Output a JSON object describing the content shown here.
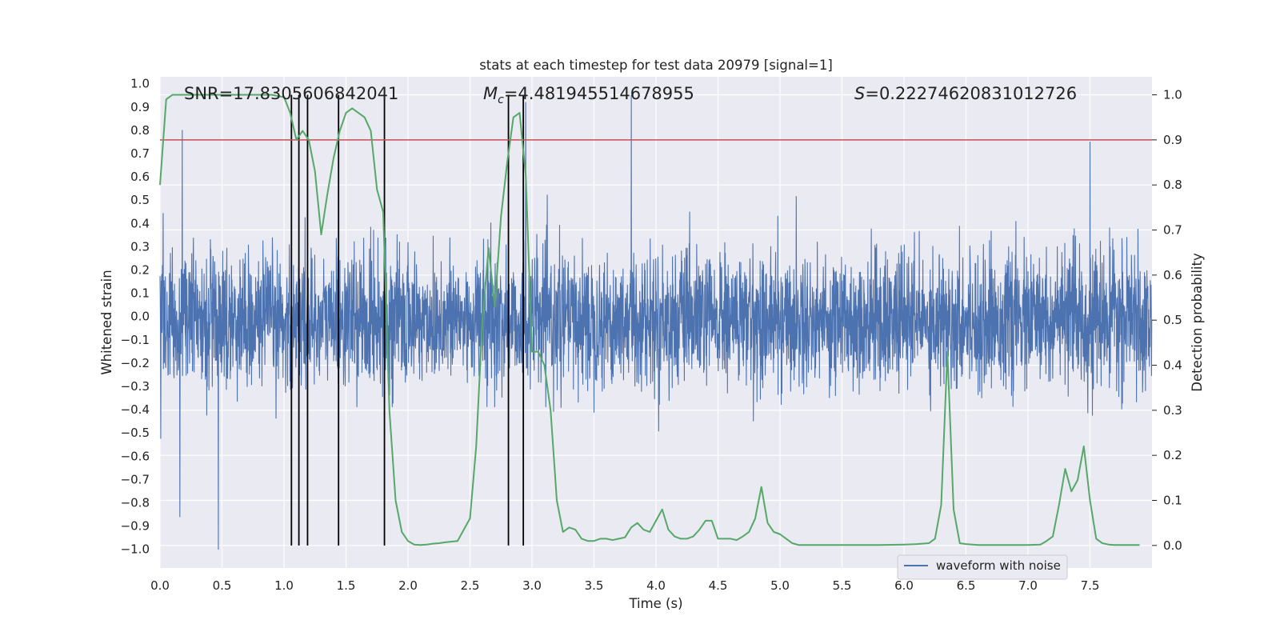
{
  "chart_data": {
    "type": "line",
    "title": "stats at each timestep for test data 20979 [signal=1]",
    "xlabel": "Time (s)",
    "ylabel_left": "Whitened strain",
    "ylabel_right": "Detection probability",
    "xlim": [
      0.0,
      8.0
    ],
    "ylim_left": [
      -1.08,
      1.03
    ],
    "ylim_right": [
      -0.05,
      1.04
    ],
    "x_ticks": [
      "0.0",
      "0.5",
      "1.0",
      "1.5",
      "2.0",
      "2.5",
      "3.0",
      "3.5",
      "4.0",
      "4.5",
      "5.0",
      "5.5",
      "6.0",
      "6.5",
      "7.0",
      "7.5"
    ],
    "x_tick_values": [
      0.0,
      0.5,
      1.0,
      1.5,
      2.0,
      2.5,
      3.0,
      3.5,
      4.0,
      4.5,
      5.0,
      5.5,
      6.0,
      6.5,
      7.0,
      7.5
    ],
    "left_ticks": [
      "1.0",
      "0.9",
      "0.8",
      "0.7",
      "0.6",
      "0.5",
      "0.4",
      "0.3",
      "0.2",
      "0.1",
      "0.0",
      "−0.1",
      "−0.2",
      "−0.3",
      "−0.4",
      "−0.5",
      "−0.6",
      "−0.7",
      "−0.8",
      "−0.9",
      "−1.0"
    ],
    "left_tick_values": [
      1.0,
      0.9,
      0.8,
      0.7,
      0.6,
      0.5,
      0.4,
      0.3,
      0.2,
      0.1,
      0.0,
      -0.1,
      -0.2,
      -0.3,
      -0.4,
      -0.5,
      -0.6,
      -0.7,
      -0.8,
      -0.9,
      -1.0
    ],
    "right_ticks": [
      "1.0",
      "0.9",
      "0.8",
      "0.7",
      "0.6",
      "0.5",
      "0.4",
      "0.3",
      "0.2",
      "0.1",
      "0.0"
    ],
    "right_tick_values": [
      1.0,
      0.9,
      0.8,
      0.7,
      0.6,
      0.5,
      0.4,
      0.3,
      0.2,
      0.1,
      0.0
    ],
    "grid": true,
    "legend": {
      "position": "lower-right",
      "entries": [
        "waveform with noise"
      ]
    },
    "annotations": {
      "snr": "SNR=17.8305606842041",
      "mc_symbol": "M",
      "mc_sub": "c",
      "mc_value": "=4.481945514678955",
      "s_symbol": "S",
      "s_value": "=0.22274620831012726"
    },
    "threshold": {
      "axis": "right",
      "value": 0.9,
      "color": "#c44e52"
    },
    "vertical_lines": {
      "color": "#000000",
      "x": [
        1.06,
        1.12,
        1.19,
        1.44,
        1.81,
        2.81,
        2.93
      ]
    },
    "waveform_envelope": {
      "name": "waveform with noise",
      "color": "#4c72b0",
      "samples": 4096,
      "dense_band": [
        -0.38,
        0.35
      ],
      "max_abs": 1.0,
      "notable_spikes": [
        {
          "t": 0.47,
          "v": -1.0
        },
        {
          "t": 3.8,
          "v": 0.95
        },
        {
          "t": 7.5,
          "v": 0.75
        },
        {
          "t": 0.16,
          "v": -0.86
        },
        {
          "t": 0.18,
          "v": 0.8
        },
        {
          "t": 2.95,
          "v": 0.92
        }
      ]
    },
    "detection_probability": {
      "color": "#55a868",
      "axis": "right",
      "x": [
        0.0,
        0.05,
        0.1,
        0.15,
        0.2,
        0.3,
        0.4,
        0.5,
        0.6,
        0.7,
        0.8,
        0.9,
        1.0,
        1.05,
        1.1,
        1.15,
        1.2,
        1.25,
        1.3,
        1.35,
        1.4,
        1.45,
        1.5,
        1.55,
        1.6,
        1.65,
        1.7,
        1.75,
        1.8,
        1.85,
        1.9,
        1.95,
        2.0,
        2.05,
        2.1,
        2.15,
        2.2,
        2.25,
        2.3,
        2.4,
        2.5,
        2.55,
        2.6,
        2.65,
        2.7,
        2.75,
        2.8,
        2.85,
        2.9,
        2.95,
        3.0,
        3.05,
        3.1,
        3.15,
        3.2,
        3.25,
        3.3,
        3.35,
        3.4,
        3.45,
        3.5,
        3.55,
        3.6,
        3.65,
        3.7,
        3.75,
        3.8,
        3.85,
        3.9,
        3.95,
        4.0,
        4.05,
        4.1,
        4.15,
        4.2,
        4.25,
        4.3,
        4.35,
        4.4,
        4.45,
        4.5,
        4.55,
        4.6,
        4.65,
        4.7,
        4.75,
        4.8,
        4.85,
        4.9,
        4.95,
        5.0,
        5.05,
        5.1,
        5.15,
        5.2,
        5.3,
        5.5,
        5.8,
        6.0,
        6.1,
        6.2,
        6.25,
        6.3,
        6.35,
        6.4,
        6.45,
        6.5,
        6.6,
        6.8,
        7.0,
        7.1,
        7.15,
        7.2,
        7.25,
        7.3,
        7.35,
        7.4,
        7.45,
        7.5,
        7.55,
        7.6,
        7.65,
        7.7,
        7.9
      ],
      "y": [
        0.8,
        0.99,
        1.0,
        1.0,
        1.0,
        1.0,
        1.0,
        1.0,
        1.0,
        1.0,
        1.0,
        1.0,
        0.995,
        0.96,
        0.9,
        0.92,
        0.9,
        0.83,
        0.69,
        0.78,
        0.86,
        0.92,
        0.96,
        0.97,
        0.96,
        0.95,
        0.92,
        0.79,
        0.74,
        0.3,
        0.1,
        0.03,
        0.01,
        0.002,
        0.001,
        0.002,
        0.004,
        0.005,
        0.007,
        0.01,
        0.06,
        0.22,
        0.5,
        0.66,
        0.53,
        0.73,
        0.85,
        0.95,
        0.96,
        0.82,
        0.43,
        0.43,
        0.4,
        0.3,
        0.1,
        0.03,
        0.04,
        0.035,
        0.015,
        0.01,
        0.01,
        0.015,
        0.015,
        0.012,
        0.015,
        0.018,
        0.04,
        0.05,
        0.035,
        0.03,
        0.055,
        0.08,
        0.035,
        0.02,
        0.015,
        0.015,
        0.02,
        0.035,
        0.055,
        0.055,
        0.015,
        0.015,
        0.015,
        0.012,
        0.02,
        0.03,
        0.06,
        0.13,
        0.05,
        0.03,
        0.025,
        0.015,
        0.005,
        0.001,
        0.001,
        0.001,
        0.001,
        0.001,
        0.002,
        0.003,
        0.005,
        0.015,
        0.09,
        0.43,
        0.08,
        0.005,
        0.003,
        0.001,
        0.001,
        0.001,
        0.002,
        0.01,
        0.02,
        0.09,
        0.17,
        0.12,
        0.145,
        0.22,
        0.1,
        0.015,
        0.005,
        0.002,
        0.001,
        0.001
      ]
    }
  }
}
